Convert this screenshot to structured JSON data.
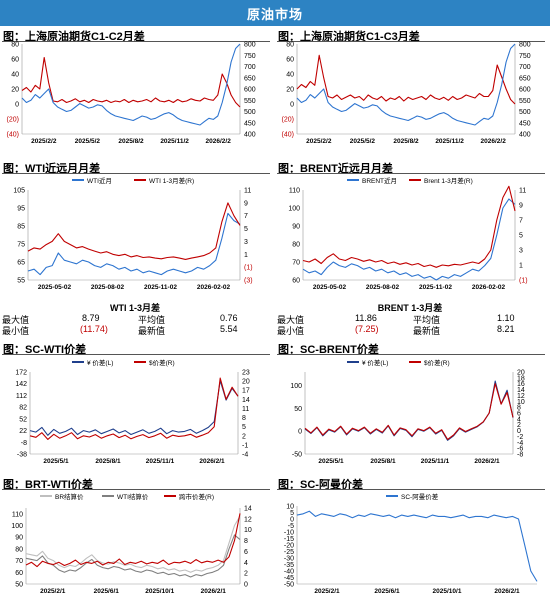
{
  "header": {
    "title": "原油市场"
  },
  "colors": {
    "banner": "#2d83c3",
    "blue": "#2e75d0",
    "red": "#c00000",
    "gray": "#a6a6a6",
    "darkblue": "#1f3f8c"
  },
  "panels": {
    "p1": {
      "title": "图：上海原油期货C1-C2月差"
    },
    "p2": {
      "title": "图：上海原油期货C1-C3月差"
    },
    "p3": {
      "title": "图：WTI近远月月差"
    },
    "p4": {
      "title": "图：BRENT近远月月差"
    },
    "p5": {
      "title": "图：SC-WTI价差"
    },
    "p6": {
      "title": "图：SC-BRENT价差"
    },
    "p7": {
      "title": "图：BRT-WTI价差"
    },
    "p8": {
      "title": "图：SC-阿曼价差"
    }
  },
  "stats": {
    "wti": {
      "caption": "WTI 1-3月差",
      "max_label": "最大值",
      "max": "8.79",
      "avg_label": "平均值",
      "avg": "0.76",
      "min_label": "最小值",
      "min": "(11.74)",
      "latest_label": "最新值",
      "latest": "5.54"
    },
    "brent": {
      "caption": "BRENT 1-3月差",
      "max_label": "最大值",
      "max": "11.86",
      "avg_label": "平均值",
      "avg": "1.10",
      "min_label": "最小值",
      "min": "(7.25)",
      "latest_label": "最新值",
      "latest": "8.21"
    }
  },
  "chart_data": [
    {
      "id": "p1",
      "type": "line",
      "x_ticks": [
        "2025/2/2",
        "2025/5/2",
        "2025/8/2",
        "2025/11/2",
        "2026/2/2"
      ],
      "y_left_ticks": [
        "80",
        "60",
        "40",
        "20",
        "0",
        "(20)",
        "(40)"
      ],
      "ylim_left": [
        -40,
        80
      ],
      "y_right_ticks": [
        "800",
        "750",
        "700",
        "650",
        "600",
        "550",
        "500",
        "450",
        "400"
      ],
      "ylim_right": [
        400,
        800
      ],
      "series": [
        {
          "axis": "left",
          "color": "#c00000",
          "values": [
            18,
            22,
            16,
            25,
            20,
            62,
            28,
            4,
            3,
            6,
            2,
            4,
            7,
            3,
            5,
            2,
            6,
            4,
            3,
            5,
            2,
            4,
            3,
            6,
            2,
            5,
            3,
            4,
            6,
            3,
            8,
            4,
            3,
            5,
            2,
            6,
            3,
            4,
            7,
            5,
            4,
            8,
            6,
            5,
            12,
            40,
            28,
            12,
            2,
            -4
          ]
        },
        {
          "axis": "right",
          "color": "#2e75d0",
          "values": [
            560,
            540,
            550,
            575,
            560,
            580,
            600,
            540,
            520,
            510,
            500,
            505,
            520,
            535,
            525,
            515,
            520,
            530,
            525,
            505,
            490,
            480,
            475,
            470,
            465,
            460,
            470,
            480,
            475,
            465,
            470,
            480,
            490,
            495,
            485,
            470,
            460,
            455,
            450,
            445,
            440,
            455,
            470,
            465,
            480,
            540,
            620,
            720,
            780,
            800
          ]
        }
      ]
    },
    {
      "id": "p2",
      "type": "line",
      "x_ticks": [
        "2025/2/2",
        "2025/5/2",
        "2025/8/2",
        "2025/11/2",
        "2026/2/2"
      ],
      "y_left_ticks": [
        "80",
        "60",
        "40",
        "20",
        "0",
        "(20)",
        "(40)"
      ],
      "ylim_left": [
        -40,
        80
      ],
      "y_right_ticks": [
        "800",
        "750",
        "700",
        "650",
        "600",
        "550",
        "500",
        "450",
        "400"
      ],
      "ylim_right": [
        400,
        800
      ],
      "series": [
        {
          "axis": "left",
          "color": "#c00000",
          "values": [
            20,
            26,
            22,
            30,
            25,
            65,
            35,
            10,
            8,
            12,
            6,
            9,
            12,
            8,
            10,
            5,
            12,
            8,
            6,
            10,
            4,
            8,
            6,
            10,
            4,
            9,
            6,
            8,
            10,
            6,
            12,
            8,
            6,
            9,
            5,
            10,
            6,
            8,
            12,
            10,
            8,
            14,
            10,
            10,
            18,
            52,
            36,
            20,
            6,
            0
          ]
        },
        {
          "axis": "right",
          "color": "#2e75d0",
          "values": [
            560,
            540,
            550,
            575,
            560,
            580,
            600,
            540,
            520,
            510,
            500,
            505,
            520,
            535,
            525,
            515,
            520,
            530,
            525,
            505,
            490,
            480,
            475,
            470,
            465,
            460,
            470,
            480,
            475,
            465,
            470,
            480,
            490,
            495,
            485,
            470,
            460,
            455,
            450,
            445,
            440,
            455,
            470,
            465,
            480,
            540,
            620,
            720,
            780,
            800
          ]
        }
      ]
    },
    {
      "id": "p3",
      "type": "line",
      "x_ticks": [
        "2025-05-02",
        "2025-08-02",
        "2025-11-02",
        "2026-02-02"
      ],
      "legend": [
        "WTI近月",
        "WTI 1-3月差(R)"
      ],
      "y_left_ticks": [
        "105",
        "95",
        "85",
        "75",
        "65",
        "55"
      ],
      "ylim_left": [
        55,
        105
      ],
      "y_right_ticks": [
        "11",
        "9",
        "7",
        "5",
        "3",
        "1",
        "(1)",
        "(3)"
      ],
      "ylim_right": [
        -3,
        11
      ],
      "series": [
        {
          "axis": "left",
          "name": "WTI近月",
          "color": "#2e75d0",
          "values": [
            60,
            61,
            58,
            62,
            63,
            70,
            66,
            65,
            64,
            66,
            65,
            63,
            62,
            64,
            63,
            61,
            62,
            60,
            61,
            59,
            60,
            59,
            58,
            60,
            61,
            60,
            59,
            60,
            62,
            61,
            63,
            66,
            78,
            92,
            88,
            86
          ]
        },
        {
          "axis": "right",
          "name": "WTI 1-3月差(R)",
          "color": "#c00000",
          "values": [
            1.5,
            2,
            1.8,
            2.5,
            3,
            4.2,
            3,
            2.5,
            2,
            2.2,
            1.8,
            1.5,
            1.2,
            1.4,
            1,
            0.8,
            1,
            0.6,
            0.8,
            0.5,
            0.6,
            0.4,
            0.3,
            0.5,
            0.6,
            0.4,
            0.2,
            0.4,
            0.6,
            0.8,
            1.2,
            2,
            6,
            9,
            7,
            5.5
          ]
        }
      ]
    },
    {
      "id": "p4",
      "type": "line",
      "x_ticks": [
        "2025-05-02",
        "2025-08-02",
        "2025-11-02",
        "2026-02-02"
      ],
      "legend": [
        "BRENT近月",
        "Brent 1-3月差(R)"
      ],
      "y_left_ticks": [
        "110",
        "100",
        "90",
        "80",
        "70",
        "60"
      ],
      "ylim_left": [
        60,
        110
      ],
      "y_right_ticks": [
        "11",
        "9",
        "7",
        "5",
        "3",
        "1",
        "(1)"
      ],
      "ylim_right": [
        -1,
        11
      ],
      "series": [
        {
          "axis": "left",
          "name": "BRENT近月",
          "color": "#2e75d0",
          "values": [
            66,
            64,
            65,
            63,
            67,
            70,
            68,
            67,
            69,
            68,
            66,
            67,
            65,
            66,
            64,
            65,
            63,
            64,
            62,
            63,
            61,
            62,
            60,
            62,
            61,
            63,
            62,
            64,
            66,
            65,
            68,
            72,
            85,
            100,
            105,
            102
          ]
        },
        {
          "axis": "right",
          "name": "Brent 1-3月差(R)",
          "color": "#c00000",
          "values": [
            1.6,
            1.4,
            1.8,
            1.2,
            2,
            2.5,
            1.8,
            1.6,
            2,
            1.8,
            1.5,
            1.7,
            1.4,
            1.6,
            1.2,
            1.4,
            1.1,
            1.3,
            1,
            1.2,
            0.8,
            1,
            0.7,
            1,
            0.9,
            1.1,
            1,
            1.2,
            1.4,
            1.2,
            1.8,
            3,
            7,
            10,
            11.5,
            8.2
          ]
        }
      ]
    },
    {
      "id": "p5",
      "type": "line",
      "x_ticks": [
        "2025/5/1",
        "2025/8/1",
        "2025/11/1",
        "2026/2/1"
      ],
      "legend": [
        "¥ 价差(L)",
        "$价差(R)"
      ],
      "y_left_ticks": [
        "172",
        "142",
        "112",
        "82",
        "52",
        "22",
        "-8",
        "-38"
      ],
      "ylim_left": [
        -38,
        172
      ],
      "y_right_ticks": [
        "23",
        "20",
        "17",
        "14",
        "11",
        "8",
        "5",
        "2",
        "-1",
        "-4"
      ],
      "ylim_right": [
        -4,
        23
      ],
      "series": [
        {
          "axis": "left",
          "name": "¥ 价差(L)",
          "color": "#1f3f8c",
          "values": [
            22,
            18,
            30,
            10,
            25,
            15,
            20,
            28,
            12,
            22,
            18,
            24,
            14,
            20,
            26,
            16,
            22,
            12,
            18,
            24,
            15,
            20,
            28,
            14,
            22,
            18,
            20,
            25,
            15,
            22,
            30,
            45,
            150,
            100,
            130,
            110
          ]
        },
        {
          "axis": "right",
          "name": "$价差(R)",
          "color": "#c00000",
          "values": [
            2,
            1.5,
            3,
            0.8,
            2.5,
            1.2,
            2,
            3,
            1,
            2,
            1.6,
            2.4,
            1.2,
            2,
            2.6,
            1.4,
            2.2,
            1,
            1.8,
            2.4,
            1.4,
            2,
            2.8,
            1.2,
            2.2,
            1.8,
            2,
            2.5,
            1.5,
            2.2,
            3,
            5,
            21,
            14,
            18,
            15
          ]
        }
      ]
    },
    {
      "id": "p6",
      "type": "line",
      "x_ticks": [
        "2025/5/1",
        "2025/8/1",
        "2025/11/1",
        "2026/2/1"
      ],
      "legend": [
        "¥ 价差(L)",
        "$价差(R)"
      ],
      "y_left_ticks": [
        "100",
        "50",
        "0",
        "-50"
      ],
      "ylim_left": [
        -50,
        130
      ],
      "y_right_ticks": [
        "20",
        "18",
        "16",
        "14",
        "12",
        "10",
        "8",
        "6",
        "4",
        "2",
        "0",
        "-2",
        "-4",
        "-6",
        "-8"
      ],
      "ylim_right": [
        -8,
        20
      ],
      "series": [
        {
          "axis": "left",
          "name": "¥ 价差(L)",
          "color": "#1f3f8c",
          "values": [
            5,
            -5,
            8,
            -10,
            3,
            -2,
            10,
            -8,
            5,
            0,
            8,
            -6,
            4,
            -4,
            12,
            -10,
            6,
            2,
            -12,
            4,
            0,
            8,
            -6,
            2,
            -20,
            -10,
            6,
            -2,
            4,
            10,
            20,
            40,
            110,
            60,
            90,
            30
          ]
        },
        {
          "axis": "right",
          "name": "$价差(R)",
          "color": "#c00000",
          "values": [
            0.8,
            -0.8,
            1.2,
            -1.5,
            0.5,
            -0.3,
            1.5,
            -1.2,
            0.8,
            0,
            1.2,
            -0.9,
            0.6,
            -0.6,
            1.8,
            -1.5,
            0.9,
            0.3,
            -1.8,
            0.6,
            0,
            1.2,
            -0.9,
            0.3,
            -3,
            -1.5,
            0.9,
            -0.3,
            0.6,
            1.5,
            3,
            6,
            16,
            9,
            13,
            4.5
          ]
        }
      ]
    },
    {
      "id": "p7",
      "type": "line",
      "x_ticks": [
        "2025/2/1",
        "2025/6/1",
        "2025/10/1",
        "2026/2/1"
      ],
      "legend": [
        "BR结算价",
        "WTI结算价",
        "跨市价差(R)"
      ],
      "y_left_ticks": [
        "110",
        "100",
        "90",
        "80",
        "70",
        "60",
        "50"
      ],
      "ylim_left": [
        50,
        115
      ],
      "y_right_ticks": [
        "14",
        "12",
        "10",
        "8",
        "6",
        "4",
        "2",
        "0"
      ],
      "ylim_right": [
        0,
        14
      ],
      "series": [
        {
          "axis": "left",
          "name": "BR结算价",
          "color": "#bfbfbf",
          "values": [
            76,
            75,
            74,
            78,
            72,
            70,
            66,
            64,
            66,
            65,
            68,
            72,
            75,
            70,
            68,
            67,
            69,
            68,
            66,
            67,
            65,
            64,
            66,
            65,
            63,
            64,
            62,
            63,
            61,
            62,
            60,
            62,
            61,
            63,
            64,
            66,
            70,
            85,
            100,
            108
          ]
        },
        {
          "axis": "left",
          "name": "WTI结算价",
          "color": "#808080",
          "values": [
            72,
            71,
            70,
            74,
            68,
            66,
            62,
            60,
            62,
            61,
            64,
            68,
            71,
            66,
            64,
            63,
            65,
            64,
            62,
            63,
            61,
            60,
            62,
            61,
            59,
            60,
            58,
            59,
            57,
            58,
            56,
            58,
            57,
            59,
            60,
            62,
            66,
            80,
            92,
            88
          ]
        },
        {
          "axis": "right",
          "name": "跨市价差(R)",
          "color": "#c00000",
          "values": [
            3.5,
            4,
            3.2,
            4.2,
            3.8,
            3.6,
            4,
            3.4,
            3.8,
            4.4,
            3.6,
            4,
            3.8,
            4.2,
            3.5,
            4,
            3.8,
            4.6,
            3.6,
            4,
            3.8,
            4.2,
            3.7,
            4,
            3.8,
            4.4,
            3.6,
            4,
            3.9,
            4.2,
            3.8,
            4.5,
            3.9,
            4.2,
            4,
            4.4,
            4,
            5,
            8,
            13
          ]
        }
      ]
    },
    {
      "id": "p8",
      "type": "line",
      "x_ticks": [
        "2025/2/1",
        "2025/6/1",
        "2025/10/1",
        "2026/2/1"
      ],
      "legend": [
        "SC-阿曼价差"
      ],
      "y_left_ticks": [
        "10",
        "5",
        "0",
        "-5",
        "-10",
        "-15",
        "-20",
        "-25",
        "-30",
        "-35",
        "-40",
        "-45",
        "-50"
      ],
      "ylim_left": [
        -50,
        10
      ],
      "series": [
        {
          "axis": "left",
          "name": "SC-阿曼价差",
          "color": "#2e75d0",
          "values": [
            3,
            4,
            6,
            2,
            4,
            3,
            2,
            4,
            3,
            1,
            3,
            2,
            4,
            3,
            2,
            3,
            1,
            3,
            2,
            3,
            2,
            1,
            3,
            2,
            2,
            1,
            2,
            3,
            1,
            2,
            2,
            1,
            3,
            2,
            1,
            2,
            0,
            -20,
            -40,
            -48
          ]
        }
      ]
    }
  ]
}
